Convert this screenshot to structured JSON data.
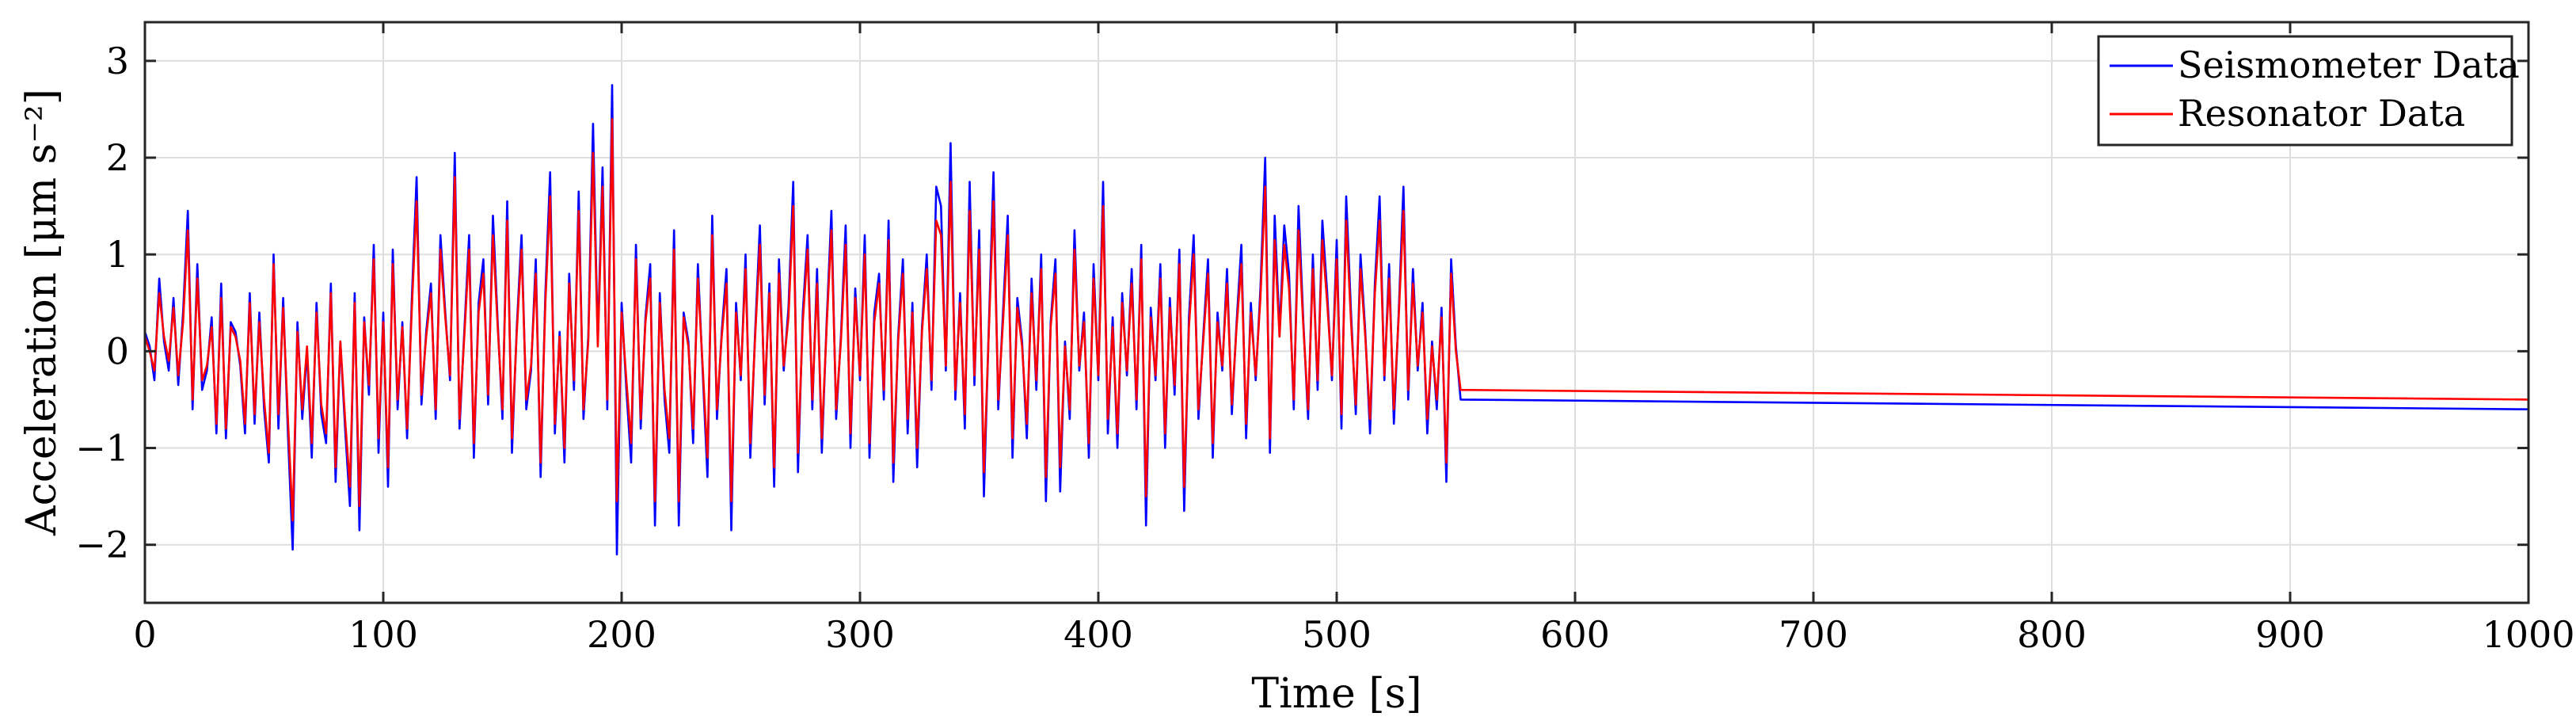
{
  "chart_data": {
    "type": "line",
    "title": "",
    "xlabel": "Time [s]",
    "ylabel": "Acceleration [μm s⁻²]",
    "xlim": [
      0,
      1000
    ],
    "ylim": [
      -2.6,
      3.4
    ],
    "xticks": [
      0,
      100,
      200,
      300,
      400,
      500,
      600,
      700,
      800,
      900,
      1000
    ],
    "xtick_labels": [
      "0",
      "100",
      "200",
      "300",
      "400",
      "500",
      "600",
      "700",
      "800",
      "900",
      "1000"
    ],
    "yticks": [
      -2,
      -1,
      0,
      1,
      2,
      3
    ],
    "ytick_labels": [
      "−2",
      "−1",
      "0",
      "1",
      "2",
      "3"
    ],
    "grid": true,
    "legend_position": "top-right",
    "sample_interval_s": 2,
    "series": [
      {
        "name": "Seismometer Data",
        "color": "#0000ff",
        "x_start": 0,
        "x_step": 2,
        "values": [
          0.2,
          0.05,
          -0.3,
          0.75,
          0.1,
          -0.2,
          0.55,
          -0.35,
          0.4,
          1.45,
          -0.6,
          0.9,
          -0.4,
          -0.2,
          0.35,
          -0.85,
          0.7,
          -0.9,
          0.3,
          0.2,
          -0.15,
          -0.85,
          0.6,
          -0.75,
          0.4,
          -0.6,
          -1.15,
          1.0,
          -0.8,
          0.55,
          -0.85,
          -2.05,
          0.3,
          -0.7,
          0.0,
          -1.1,
          0.5,
          -0.65,
          -0.95,
          0.7,
          -1.35,
          0.1,
          -0.8,
          -1.6,
          0.6,
          -1.85,
          0.35,
          -0.45,
          1.1,
          -1.05,
          0.4,
          -1.4,
          1.05,
          -0.6,
          0.3,
          -0.9,
          0.55,
          1.8,
          -0.55,
          0.2,
          0.7,
          -0.7,
          1.2,
          0.4,
          -0.3,
          2.05,
          -0.8,
          0.2,
          1.2,
          -1.1,
          0.5,
          0.95,
          -0.55,
          1.4,
          0.3,
          -0.7,
          1.55,
          -1.05,
          0.25,
          1.2,
          -0.6,
          -0.2,
          0.95,
          -1.3,
          0.6,
          1.85,
          -0.85,
          0.2,
          -1.15,
          0.8,
          -0.4,
          1.65,
          -0.7,
          0.15,
          2.35,
          0.1,
          1.9,
          -0.6,
          2.75,
          -2.1,
          0.5,
          -0.4,
          -1.15,
          1.1,
          -0.8,
          0.35,
          0.9,
          -1.8,
          0.6,
          -0.5,
          -1.05,
          1.25,
          -1.8,
          0.4,
          0.1,
          -0.95,
          0.9,
          -0.2,
          -1.3,
          1.4,
          -0.7,
          0.2,
          0.85,
          -1.85,
          0.5,
          -0.3,
          1.0,
          -1.1,
          0.2,
          1.3,
          -0.55,
          0.7,
          -1.4,
          0.95,
          -0.2,
          0.45,
          1.75,
          -1.25,
          0.4,
          1.2,
          -0.6,
          0.85,
          -1.05,
          0.3,
          1.45,
          -0.7,
          0.15,
          1.3,
          -1.0,
          0.65,
          -0.3,
          1.2,
          -1.1,
          0.4,
          0.8,
          -0.5,
          1.35,
          -1.35,
          0.15,
          0.95,
          -0.85,
          0.5,
          -1.2,
          0.25,
          1.0,
          -0.4,
          1.7,
          1.5,
          -0.2,
          2.15,
          -0.5,
          0.6,
          -0.8,
          1.75,
          -0.35,
          1.25,
          -1.5,
          0.2,
          1.85,
          -0.6,
          0.4,
          1.4,
          -1.1,
          0.55,
          0.1,
          -0.9,
          0.75,
          -0.4,
          1.0,
          -1.55,
          0.3,
          0.95,
          -1.45,
          0.1,
          -0.7,
          1.25,
          -0.2,
          0.4,
          -1.1,
          0.9,
          -0.3,
          1.75,
          -0.85,
          0.35,
          -1.0,
          0.6,
          -0.25,
          0.85,
          -0.6,
          1.1,
          -1.8,
          0.45,
          -0.3,
          0.9,
          -1.0,
          0.55,
          -0.45,
          1.05,
          -1.65,
          0.35,
          1.2,
          -0.7,
          0.15,
          0.95,
          -1.1,
          0.4,
          -0.2,
          0.85,
          -0.65,
          0.3,
          1.1,
          -0.9,
          0.5,
          -0.3,
          0.65,
          2.0,
          -1.05,
          1.4,
          0.2,
          1.3,
          0.8,
          -0.6,
          1.5,
          0.3,
          -0.7,
          1.0,
          -0.4,
          1.35,
          0.6,
          -0.3,
          1.15,
          -0.8,
          1.6,
          0.4,
          -0.65,
          1.0,
          0.2,
          -0.85,
          0.7,
          1.6,
          -0.3,
          0.9,
          -0.75,
          0.4,
          1.7,
          -0.5,
          0.85,
          -0.2,
          0.5,
          -0.85,
          0.1,
          -0.6,
          0.45,
          -1.35,
          0.95,
          0.05,
          -0.5
        ],
        "end_value": -0.6
      },
      {
        "name": "Resonator Data",
        "color": "#ff0000",
        "x_start": 0,
        "x_step": 2,
        "values": [
          0.15,
          0.0,
          -0.2,
          0.6,
          0.15,
          -0.1,
          0.45,
          -0.25,
          0.3,
          1.25,
          -0.5,
          0.75,
          -0.3,
          -0.15,
          0.25,
          -0.75,
          0.55,
          -0.8,
          0.25,
          0.15,
          -0.1,
          -0.75,
          0.5,
          -0.65,
          0.3,
          -0.5,
          -1.05,
          0.9,
          -0.65,
          0.45,
          -0.7,
          -1.75,
          0.2,
          -0.6,
          0.05,
          -0.95,
          0.4,
          -0.55,
          -0.85,
          0.6,
          -1.2,
          0.1,
          -0.7,
          -1.4,
          0.5,
          -1.6,
          0.3,
          -0.35,
          0.95,
          -0.9,
          0.3,
          -1.2,
          0.9,
          -0.5,
          0.25,
          -0.8,
          0.45,
          1.55,
          -0.45,
          0.15,
          0.6,
          -0.6,
          1.05,
          0.35,
          -0.25,
          1.8,
          -0.7,
          0.15,
          1.05,
          -0.95,
          0.4,
          0.8,
          -0.45,
          1.2,
          0.25,
          -0.6,
          1.35,
          -0.9,
          0.2,
          1.05,
          -0.5,
          -0.15,
          0.8,
          -1.15,
          0.5,
          1.6,
          -0.75,
          0.15,
          -1.0,
          0.7,
          -0.3,
          1.45,
          -0.6,
          0.1,
          2.05,
          0.05,
          1.7,
          -0.5,
          2.4,
          -1.55,
          0.4,
          -0.3,
          -0.95,
          0.95,
          -0.7,
          0.3,
          0.75,
          -1.55,
          0.5,
          -0.4,
          -0.9,
          1.05,
          -1.55,
          0.35,
          0.05,
          -0.8,
          0.75,
          -0.15,
          -1.1,
          1.2,
          -0.6,
          0.15,
          0.7,
          -1.55,
          0.4,
          -0.25,
          0.85,
          -0.95,
          0.15,
          1.1,
          -0.45,
          0.6,
          -1.2,
          0.8,
          -0.15,
          0.35,
          1.5,
          -1.05,
          0.3,
          1.05,
          -0.5,
          0.7,
          -0.9,
          0.25,
          1.25,
          -0.6,
          0.1,
          1.1,
          -0.85,
          0.55,
          -0.25,
          1.0,
          -0.95,
          0.3,
          0.7,
          -0.4,
          1.15,
          -1.15,
          0.1,
          0.8,
          -0.7,
          0.4,
          -1.0,
          0.2,
          0.85,
          -0.3,
          1.35,
          1.2,
          -0.15,
          1.75,
          -0.4,
          0.5,
          -0.65,
          1.45,
          -0.25,
          1.05,
          -1.25,
          0.15,
          1.55,
          -0.5,
          0.3,
          1.2,
          -0.9,
          0.45,
          0.05,
          -0.75,
          0.6,
          -0.3,
          0.85,
          -1.3,
          0.25,
          0.8,
          -1.2,
          0.05,
          -0.6,
          1.05,
          -0.15,
          0.3,
          -0.95,
          0.75,
          -0.25,
          1.5,
          -0.7,
          0.25,
          -0.85,
          0.5,
          -0.2,
          0.7,
          -0.5,
          0.95,
          -1.5,
          0.35,
          -0.25,
          0.75,
          -0.85,
          0.45,
          -0.35,
          0.9,
          -1.4,
          0.25,
          1.0,
          -0.6,
          0.1,
          0.8,
          -0.95,
          0.3,
          -0.15,
          0.7,
          -0.55,
          0.25,
          0.9,
          -0.75,
          0.4,
          -0.25,
          0.55,
          1.7,
          -0.9,
          1.15,
          0.15,
          1.1,
          0.65,
          -0.5,
          1.25,
          0.25,
          -0.6,
          0.85,
          -0.3,
          1.15,
          0.5,
          -0.25,
          0.95,
          -0.65,
          1.35,
          0.3,
          -0.55,
          0.85,
          0.15,
          -0.7,
          0.6,
          1.35,
          -0.25,
          0.75,
          -0.6,
          0.35,
          1.45,
          -0.4,
          0.7,
          -0.15,
          0.4,
          -0.7,
          0.05,
          -0.5,
          0.35,
          -1.15,
          0.8,
          0.0,
          -0.4
        ],
        "end_value": -0.5
      }
    ]
  }
}
